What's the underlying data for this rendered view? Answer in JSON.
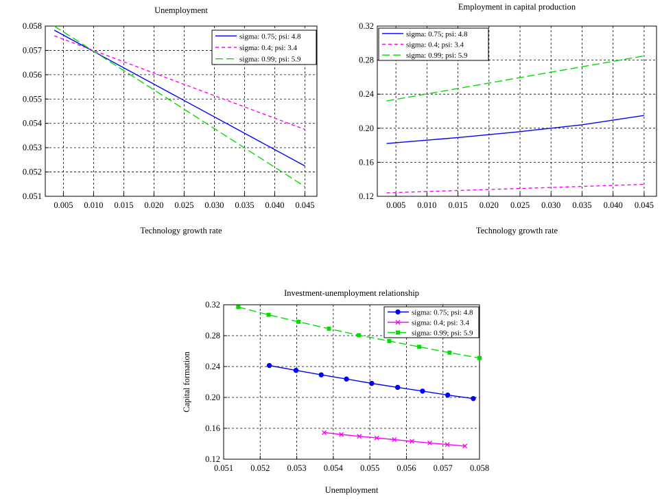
{
  "chart_data": [
    {
      "type": "line",
      "title": "Unemployment",
      "xlabel": "Technology growth rate",
      "ylabel": "",
      "xlim": [
        0.002,
        0.047
      ],
      "ylim": [
        0.051,
        0.058
      ],
      "xticks": [
        "0.005",
        "0.010",
        "0.015",
        "0.020",
        "0.025",
        "0.030",
        "0.035",
        "0.040",
        "0.045"
      ],
      "yticks": [
        "0.051",
        "0.052",
        "0.053",
        "0.054",
        "0.055",
        "0.056",
        "0.057",
        "0.058"
      ],
      "grid": true,
      "legend_position": "top-right",
      "series": [
        {
          "name": "sigma: 0.75; psi: 4.8",
          "color": "#0000ff",
          "dash": "solid",
          "x": [
            0.0035,
            0.045
          ],
          "y": [
            0.05783,
            0.05225
          ]
        },
        {
          "name": "sigma: 0.4; psi: 3.4",
          "color": "#ff00ff",
          "dash": "short",
          "x": [
            0.0035,
            0.045
          ],
          "y": [
            0.0576,
            0.05375
          ]
        },
        {
          "name": "sigma: 0.99; psi: 5.9",
          "color": "#00dd00",
          "dash": "long",
          "x": [
            0.0035,
            0.045
          ],
          "y": [
            0.058,
            0.0514
          ]
        }
      ]
    },
    {
      "type": "line",
      "title": "Employment in capital production",
      "xlabel": "Technology growth rate",
      "ylabel": "",
      "xlim": [
        0.002,
        0.047
      ],
      "ylim": [
        0.12,
        0.32
      ],
      "xticks": [
        "0.005",
        "0.010",
        "0.015",
        "0.020",
        "0.025",
        "0.030",
        "0.035",
        "0.040",
        "0.045"
      ],
      "yticks": [
        "0.12",
        "0.16",
        "0.20",
        "0.24",
        "0.28",
        "0.32"
      ],
      "grid": true,
      "legend_position": "top-left",
      "series": [
        {
          "name": "sigma: 0.75; psi: 4.8",
          "color": "#0000ff",
          "dash": "solid",
          "x": [
            0.0035,
            0.015,
            0.025,
            0.035,
            0.045
          ],
          "y": [
            0.182,
            0.189,
            0.196,
            0.204,
            0.215
          ]
        },
        {
          "name": "sigma: 0.4; psi: 3.4",
          "color": "#ff00ff",
          "dash": "short",
          "x": [
            0.0035,
            0.045
          ],
          "y": [
            0.124,
            0.134
          ]
        },
        {
          "name": "sigma: 0.99; psi: 5.9",
          "color": "#00dd00",
          "dash": "long",
          "x": [
            0.0035,
            0.045
          ],
          "y": [
            0.232,
            0.285
          ]
        }
      ]
    },
    {
      "type": "line",
      "title": "Investment-unemployment relationship",
      "xlabel": "Unemployment",
      "ylabel": "Capital formation",
      "xlim": [
        0.051,
        0.058
      ],
      "ylim": [
        0.12,
        0.32
      ],
      "xticks": [
        "0.051",
        "0.052",
        "0.053",
        "0.054",
        "0.055",
        "0.056",
        "0.057",
        "0.058"
      ],
      "yticks": [
        "0.12",
        "0.16",
        "0.20",
        "0.24",
        "0.28",
        "0.32"
      ],
      "grid": true,
      "legend_position": "top-right",
      "series": [
        {
          "name": "sigma: 0.75; psi: 4.8",
          "color": "#0000ff",
          "marker": "circle",
          "dash": "solid",
          "x": [
            0.05225,
            0.05298,
            0.05367,
            0.05436,
            0.05505,
            0.05576,
            0.05644,
            0.05713,
            0.05783
          ],
          "y": [
            0.2413,
            0.235,
            0.2292,
            0.2238,
            0.2182,
            0.213,
            0.2082,
            0.203,
            0.1985
          ]
        },
        {
          "name": "sigma: 0.4; psi: 3.4",
          "color": "#ff00ff",
          "marker": "x",
          "dash": "solid",
          "x": [
            0.05375,
            0.05422,
            0.05471,
            0.05519,
            0.05567,
            0.05615,
            0.05664,
            0.05712,
            0.0576
          ],
          "y": [
            0.1545,
            0.152,
            0.1497,
            0.1475,
            0.1453,
            0.1432,
            0.141,
            0.139,
            0.137
          ]
        },
        {
          "name": "sigma: 0.99; psi: 5.9",
          "color": "#00dd00",
          "marker": "square",
          "dash": "long",
          "x": [
            0.0514,
            0.05223,
            0.05305,
            0.05388,
            0.0547,
            0.05553,
            0.05635,
            0.05718,
            0.058
          ],
          "y": [
            0.317,
            0.307,
            0.298,
            0.289,
            0.2805,
            0.273,
            0.2655,
            0.258,
            0.251
          ]
        }
      ]
    }
  ]
}
